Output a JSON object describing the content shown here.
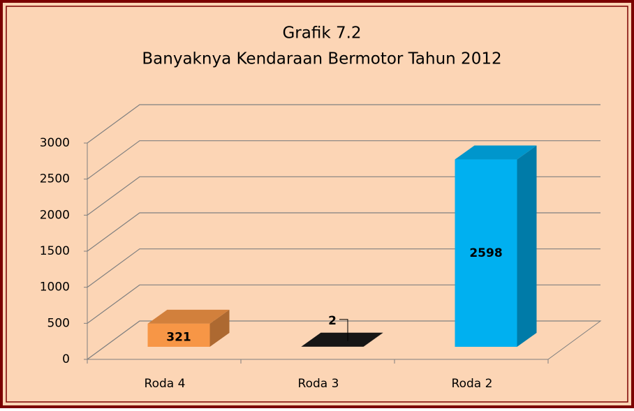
{
  "chart_data": {
    "type": "bar3d",
    "title": "Grafik 7.2",
    "subtitle": "Banyaknya Kendaraan Bermotor Tahun 2012",
    "categories": [
      "Roda 4",
      "Roda 3",
      "Roda 2"
    ],
    "values": [
      321,
      2,
      2598
    ],
    "colors": [
      "#F79646",
      "#1A1A1A",
      "#00B0F0"
    ],
    "ylim": [
      0,
      3000
    ],
    "yticks": [
      0,
      500,
      1000,
      1500,
      2000,
      2500,
      3000
    ],
    "grid": true
  }
}
